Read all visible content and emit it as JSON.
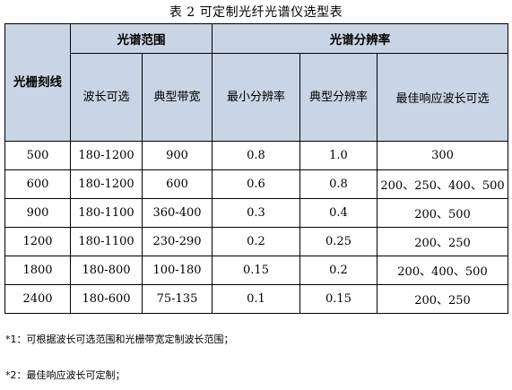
{
  "caption": "表 2   可定制光纤光谱仪选型表",
  "headers": {
    "grating": "光栅刻线",
    "spectral_range": "光谱范围",
    "resolution": "光谱分辨率",
    "wavelength_range": "波长可选",
    "typical_bandwidth": "典型带宽",
    "min_resolution": "最小分辨率",
    "typical_resolution": "典型分辨率",
    "best_response": "最佳响应波长可选"
  },
  "rows": [
    [
      "500",
      "180-1200",
      "900",
      "0.8",
      "1.0",
      "300"
    ],
    [
      "600",
      "180-1200",
      "600",
      "0.6",
      "0.8",
      "200、250、400、500"
    ],
    [
      "900",
      "180-1100",
      "360-400",
      "0.3",
      "0.4",
      "200、500"
    ],
    [
      "1200",
      "180-1100",
      "230-290",
      "0.2",
      "0.25",
      "200、250"
    ],
    [
      "1800",
      "180-800",
      "100-180",
      "0.15",
      "0.2",
      "200、400、500"
    ],
    [
      "2400",
      "180-600",
      "75-135",
      "0.1",
      "0.15",
      "200、250"
    ]
  ],
  "notes": [
    "*1：可根据波长可选范围和光栅带宽定制波长范围；",
    "*2：最佳响应波长可定制；"
  ],
  "colors": {
    "header_bg": "#c9d4e4"
  }
}
